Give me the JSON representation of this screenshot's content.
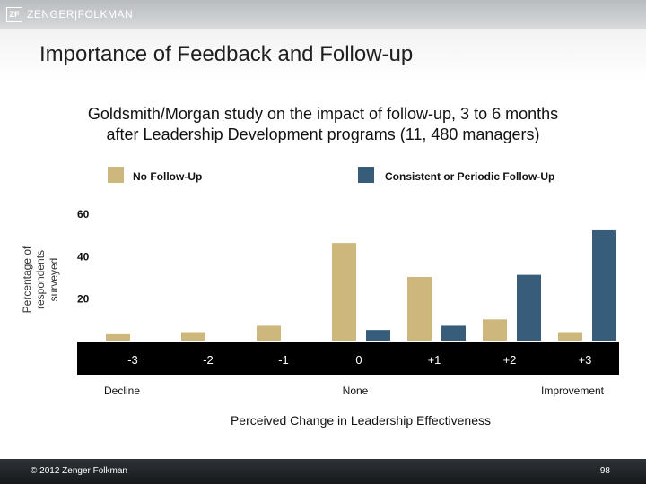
{
  "brand": {
    "logo_mark": "ZF",
    "logo_text": "ZENGER|FOLKMAN"
  },
  "slide": {
    "title": "Importance of Feedback and Follow-up",
    "subtitle_line1": "Goldsmith/Morgan study on the impact of follow-up, 3 to 6 months",
    "subtitle_line2": "after Leadership Development programs (11, 480 managers)"
  },
  "footer": {
    "copyright": "© 2012 Zenger Folkman",
    "page_number": "98"
  },
  "colors": {
    "no_follow_up": "#cdb77d",
    "follow_up": "#385d7a",
    "axis_band": "#000000"
  },
  "chart_data": {
    "type": "bar",
    "ylabel": "Percentage of respondents surveyed",
    "xlabel": "Perceived Change in Leadership Effectiveness",
    "ylim": [
      0,
      60
    ],
    "y_ticks": [
      "20",
      "40",
      "60"
    ],
    "grid": false,
    "legend_position": "top",
    "categories": [
      "-3",
      "-2",
      "-1",
      "0",
      "+1",
      "+2",
      "+3"
    ],
    "category_groups": [
      "Decline",
      "None",
      "Improvement"
    ],
    "series": [
      {
        "name": "No Follow-Up",
        "values": [
          3,
          4,
          7,
          46,
          30,
          10,
          4
        ]
      },
      {
        "name": "Consistent or Periodic Follow-Up",
        "values": [
          0,
          0,
          0,
          5,
          7,
          31,
          52
        ]
      }
    ]
  }
}
